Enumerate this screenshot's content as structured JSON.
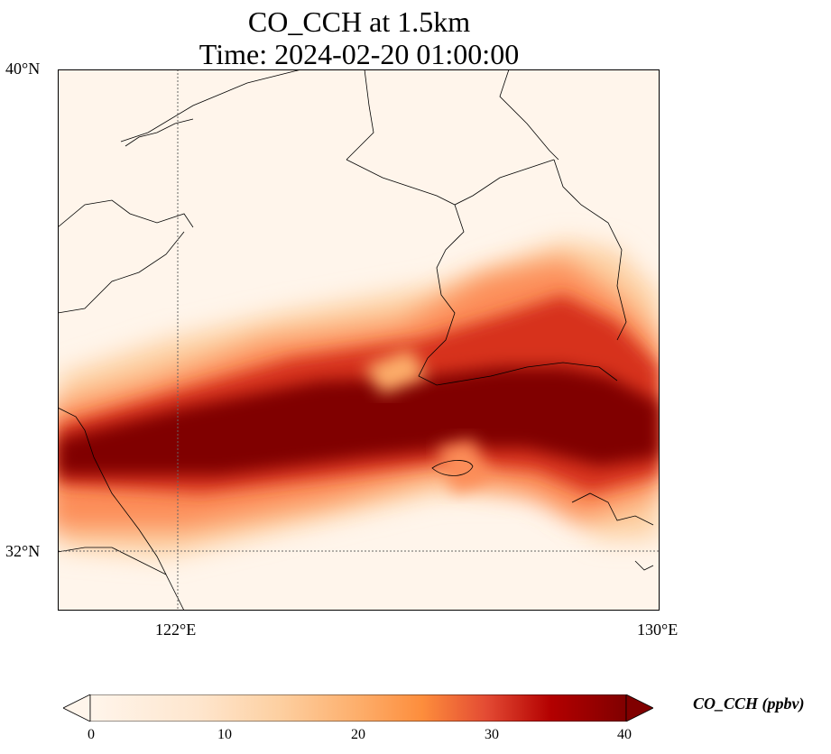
{
  "title": {
    "line1": "CO_CCH at 1.5km",
    "line2": "Time: 2024-02-20 01:00:00"
  },
  "map": {
    "lon_range": [
      120,
      130
    ],
    "lat_range": [
      31,
      40
    ],
    "lat_labels": [
      "40°N",
      "32°N"
    ],
    "lon_labels": [
      "122°E",
      "130°E"
    ],
    "gridlines": {
      "lon": 122,
      "lat": 32
    }
  },
  "colorbar": {
    "label": "CO_CCH (ppbv)",
    "ticks": [
      "0",
      "10",
      "20",
      "30",
      "40"
    ],
    "vmin": 0,
    "vmax": 40,
    "colormap": [
      "#fff5eb",
      "#fee6ce",
      "#fdd0a2",
      "#fdae6b",
      "#fd8d3c",
      "#f16913",
      "#d94801",
      "#a63603",
      "#800000"
    ]
  }
}
